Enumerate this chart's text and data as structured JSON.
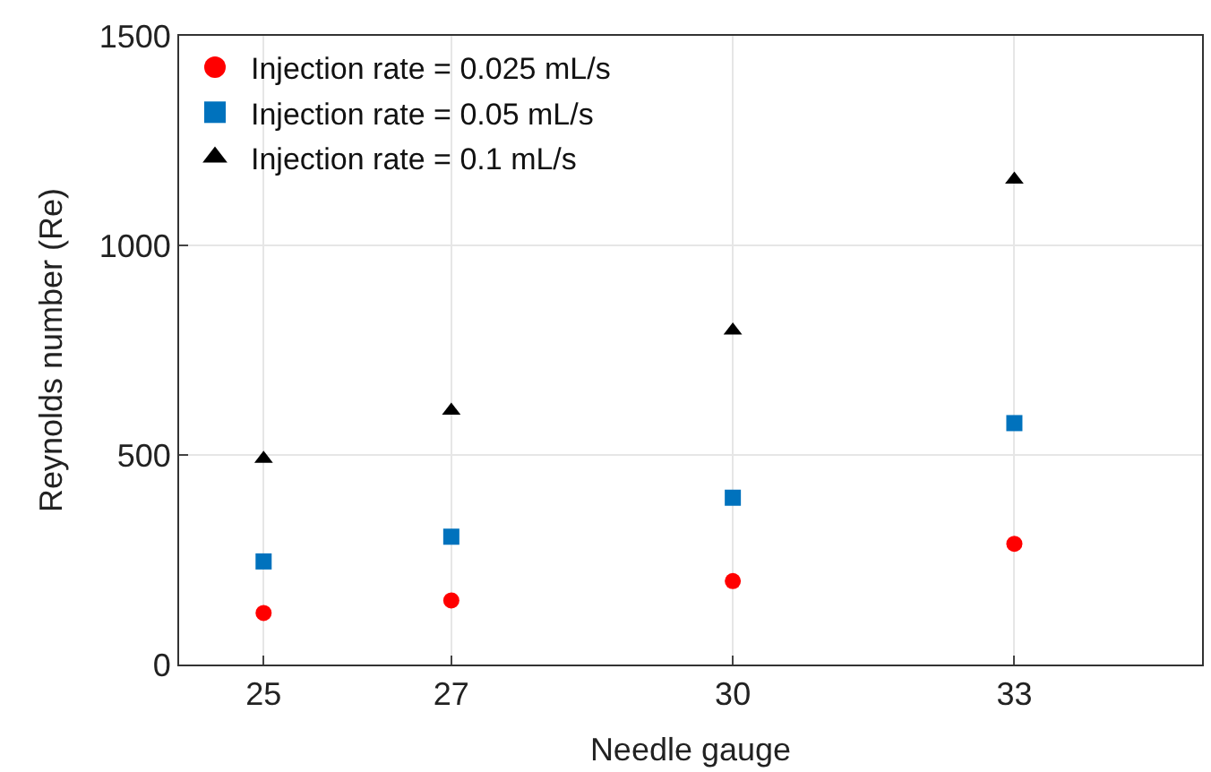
{
  "chart_data": {
    "type": "scatter",
    "xlabel": "Needle gauge",
    "ylabel": "Reynolds number (Re)",
    "x": [
      25,
      27,
      30,
      33
    ],
    "series": [
      {
        "name": "Injection rate = 0.025 mL/s",
        "color": "#ff0000",
        "marker": "circle",
        "values": [
          123,
          153,
          199,
          288
        ]
      },
      {
        "name": "Injection rate = 0.05 mL/s",
        "color": "#0072bd",
        "marker": "square",
        "values": [
          246,
          305,
          398,
          576
        ]
      },
      {
        "name": "Injection rate = 0.1 mL/s",
        "color": "#000000",
        "marker": "triangle",
        "values": [
          491,
          606,
          797,
          1157
        ]
      }
    ],
    "xlim": [
      24.1,
      35
    ],
    "xticks": [
      25,
      27,
      30,
      33
    ],
    "ylim": [
      0,
      1500
    ],
    "yticks": [
      0,
      500,
      1000,
      1500
    ],
    "grid": true,
    "legend": "top left"
  }
}
